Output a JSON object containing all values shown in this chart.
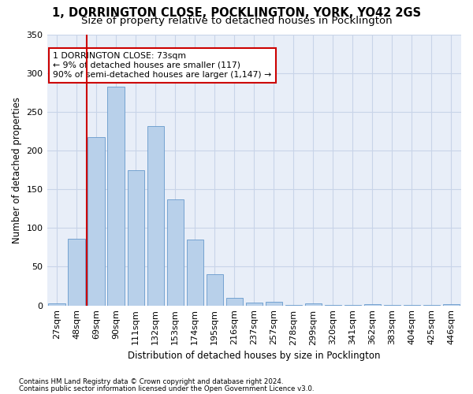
{
  "title1": "1, DORRINGTON CLOSE, POCKLINGTON, YORK, YO42 2GS",
  "title2": "Size of property relative to detached houses in Pocklington",
  "xlabel": "Distribution of detached houses by size in Pocklington",
  "ylabel": "Number of detached properties",
  "bar_labels": [
    "27sqm",
    "48sqm",
    "69sqm",
    "90sqm",
    "111sqm",
    "132sqm",
    "153sqm",
    "174sqm",
    "195sqm",
    "216sqm",
    "237sqm",
    "257sqm",
    "278sqm",
    "299sqm",
    "320sqm",
    "341sqm",
    "362sqm",
    "383sqm",
    "404sqm",
    "425sqm",
    "446sqm"
  ],
  "bar_values": [
    3,
    86,
    218,
    283,
    175,
    232,
    137,
    85,
    40,
    10,
    4,
    5,
    1,
    3,
    1,
    1,
    2,
    1,
    1,
    1,
    2
  ],
  "bar_color": "#b8d0ea",
  "bar_edge_color": "#6699cc",
  "vline_color": "#cc0000",
  "grid_color": "#c8d4e8",
  "bg_color": "#e8eef8",
  "annotation_title": "1 DORRINGTON CLOSE: 73sqm",
  "annotation_line2": "← 9% of detached houses are smaller (117)",
  "annotation_line3": "90% of semi-detached houses are larger (1,147) →",
  "footnote1": "Contains HM Land Registry data © Crown copyright and database right 2024.",
  "footnote2": "Contains public sector information licensed under the Open Government Licence v3.0.",
  "ylim": [
    0,
    350
  ],
  "title1_fontsize": 10.5,
  "title2_fontsize": 9.5,
  "xlabel_fontsize": 8.5,
  "ylabel_fontsize": 8.5,
  "tick_fontsize": 8,
  "annot_fontsize": 7.8,
  "footnote_fontsize": 6.2
}
